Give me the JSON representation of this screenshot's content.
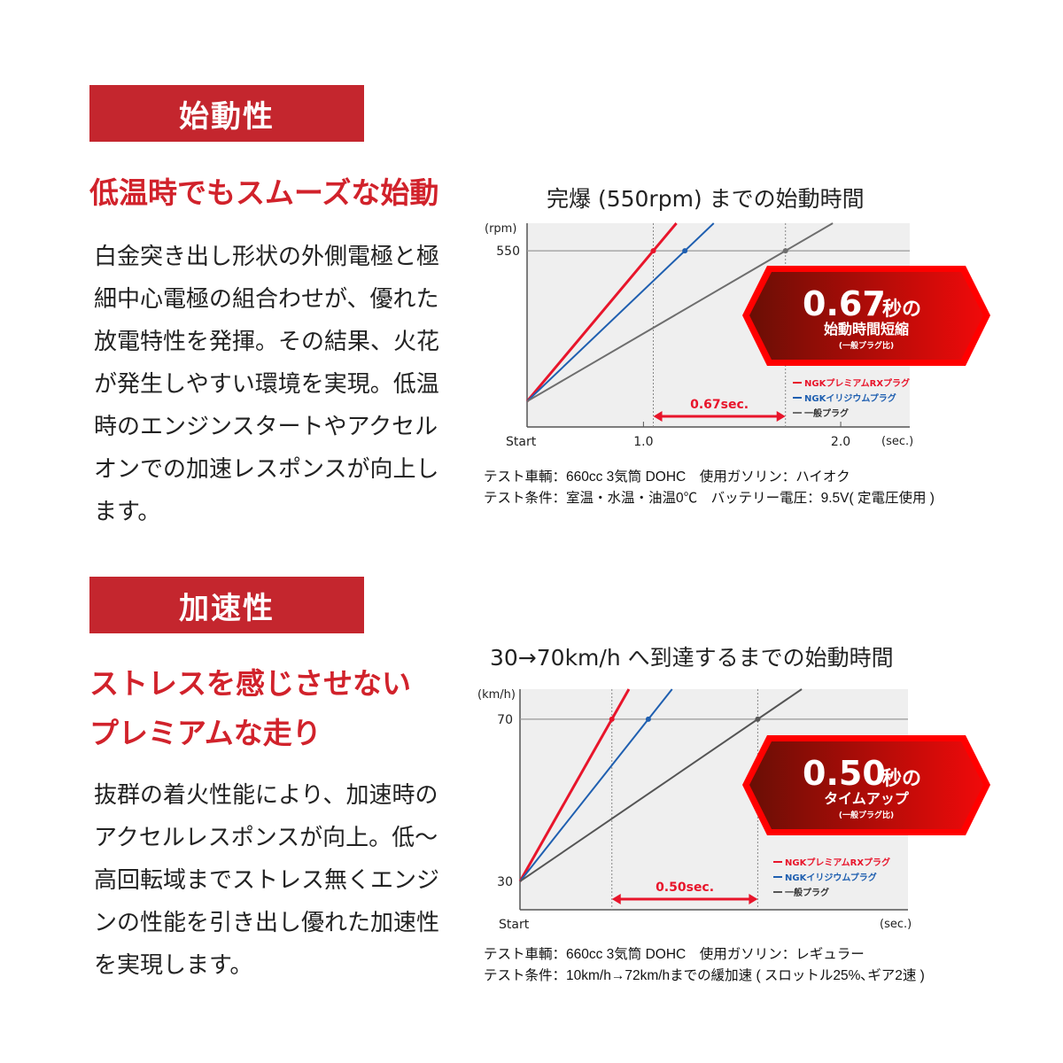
{
  "sections": [
    {
      "label": "始動性",
      "heading": [
        "低温時でもスムーズな始動"
      ],
      "body": "白金突き出し形状の外側電極と極細中心電極の組合わせが、優れた放電特性を発揮。その結果、火花が発生しやすい環境を実現。低温時のエンジンスタートやアクセルオンでの加速レスポンスが向上します。",
      "captions": [
        "テスト車輌：660cc 3気筒 DOHC　使用ガソリン：ハイオク",
        "テスト条件：室温・水温・油温0℃　バッテリー電圧：9.5V( 定電圧使用 )"
      ]
    },
    {
      "label": "加速性",
      "heading": [
        "ストレスを感じさせない",
        "プレミアムな走り"
      ],
      "body": "抜群の着火性能により、加速時のアクセルレスポンスが向上。低～高回転域までストレス無くエンジンの性能を引き出し優れた加速性を実現します。",
      "captions": [
        "テスト車輌：660cc 3気筒 DOHC　使用ガソリン：レギュラー",
        "テスト条件：10km/h→72km/hまでの緩加速 ( スロットル25%､ギア2速 )"
      ]
    }
  ],
  "colors": {
    "accent": "#c4262e",
    "red": "#e8152b",
    "blue": "#1f5fb0",
    "gray": "#6e6e6e",
    "plot_bg": "#efefef"
  },
  "chart_data": [
    {
      "type": "line",
      "title": "完爆 (550rpm) までの始動時間",
      "ylabel": "(rpm)",
      "xlabel": "(sec.)",
      "xlim": [
        0.41,
        2.35
      ],
      "ylim": [
        0,
        636
      ],
      "x_ticks": [
        {
          "v": 0.41,
          "label": "Start"
        },
        {
          "v": 1.0,
          "label": "1.0"
        },
        {
          "v": 2.0,
          "label": "2.0"
        }
      ],
      "y_ticks": [
        {
          "v": 550,
          "label": "550"
        }
      ],
      "target": 550,
      "start": [
        0.41,
        80
      ],
      "series": [
        {
          "name": "NGKプレミアムRXプラグ",
          "color": "#e8152b",
          "reach": 1.05,
          "width": 3
        },
        {
          "name": "NGKイリジウムプラグ",
          "color": "#1f5fb0",
          "reach": 1.21,
          "width": 2
        },
        {
          "name": "一般プラグ",
          "color": "#6e6e6e",
          "reach": 1.72,
          "width": 2
        }
      ],
      "diff_label": "0.67sec.",
      "badge": {
        "big": "0.67",
        "unit": "秒の",
        "sub": "始動時間短縮",
        "note": "(一般プラグ比)"
      },
      "legend": "bottom-right",
      "grid": false
    },
    {
      "type": "line",
      "title": "30→70km/h へ到達するまでの始動時間",
      "ylabel": "(km/h)",
      "xlabel": "(sec.)",
      "xlim": [
        0,
        1.33
      ],
      "ylim": [
        23,
        77.4
      ],
      "x_ticks": [
        {
          "v": 0,
          "label": "Start"
        }
      ],
      "y_ticks": [
        {
          "v": 70,
          "label": "70"
        },
        {
          "v": 30,
          "label": "30"
        }
      ],
      "target": 70,
      "start": [
        0,
        30
      ],
      "series": [
        {
          "name": "NGKプレミアムRXプラグ",
          "color": "#e8152b",
          "reach": 0.315,
          "width": 3
        },
        {
          "name": "NGKイリジウムプラグ",
          "color": "#1f5fb0",
          "reach": 0.44,
          "width": 2
        },
        {
          "name": "一般プラグ",
          "color": "#555555",
          "reach": 0.815,
          "width": 2
        }
      ],
      "diff_label": "0.50sec.",
      "badge": {
        "big": "0.50",
        "unit": "秒の",
        "sub": "タイムアップ",
        "note": "(一般プラグ比)"
      },
      "legend": "bottom-right",
      "grid": false
    }
  ]
}
